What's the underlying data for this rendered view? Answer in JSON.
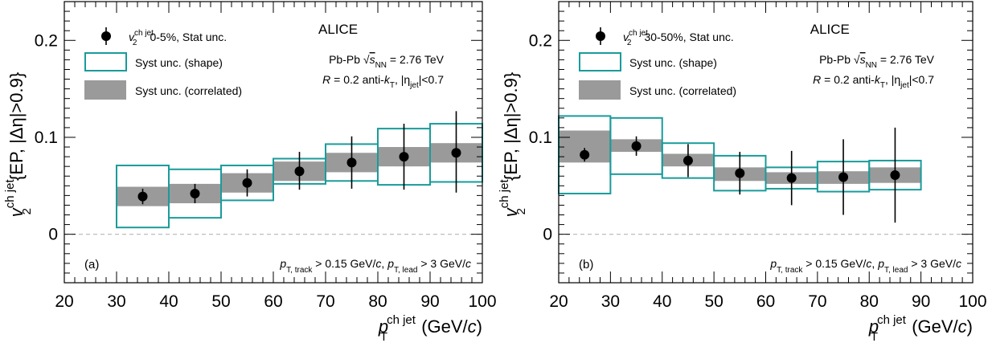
{
  "chart_data": [
    {
      "type": "scatter",
      "panel_label": "(a)",
      "experiment": "ALICE",
      "collision": "Pb-Pb",
      "energy": "= 2.76 TeV",
      "jet_def": "= 0.2 anti-",
      "eta_cut": "|<0.7",
      "kin_cut_track": "> 0.15 GeV/",
      "kin_cut_lead": "> 3 GeV/",
      "legend": {
        "stat": "0-5%, Stat unc.",
        "shape": "Syst unc. (shape)",
        "corr": "Syst unc. (correlated)"
      },
      "xlim": [
        20,
        100
      ],
      "ylim": [
        -0.05,
        0.24
      ],
      "xticks": [
        "20",
        "30",
        "40",
        "50",
        "60",
        "70",
        "80",
        "90",
        "100"
      ],
      "yticks": [
        "0",
        "0.1",
        "0.2"
      ],
      "xlabel": "(GeV/",
      "ylabel": "{EP, |Δη|>0.9}",
      "points": [
        {
          "x": 35,
          "y": 0.039,
          "stat": [
            0.031,
            0.047
          ],
          "shape": [
            0.007,
            0.071
          ],
          "corr": [
            0.029,
            0.049
          ]
        },
        {
          "x": 45,
          "y": 0.042,
          "stat": [
            0.032,
            0.052
          ],
          "shape": [
            0.017,
            0.067
          ],
          "corr": [
            0.032,
            0.052
          ]
        },
        {
          "x": 55,
          "y": 0.053,
          "stat": [
            0.039,
            0.067
          ],
          "shape": [
            0.035,
            0.071
          ],
          "corr": [
            0.043,
            0.063
          ]
        },
        {
          "x": 65,
          "y": 0.065,
          "stat": [
            0.046,
            0.085
          ],
          "shape": [
            0.052,
            0.078
          ],
          "corr": [
            0.055,
            0.075
          ]
        },
        {
          "x": 75,
          "y": 0.074,
          "stat": [
            0.047,
            0.101
          ],
          "shape": [
            0.055,
            0.093
          ],
          "corr": [
            0.064,
            0.084
          ]
        },
        {
          "x": 85,
          "y": 0.08,
          "stat": [
            0.046,
            0.114
          ],
          "shape": [
            0.051,
            0.109
          ],
          "corr": [
            0.07,
            0.09
          ]
        },
        {
          "x": 95,
          "y": 0.084,
          "stat": [
            0.043,
            0.127
          ],
          "shape": [
            0.054,
            0.114
          ],
          "corr": [
            0.074,
            0.094
          ]
        }
      ]
    },
    {
      "type": "scatter",
      "panel_label": "(b)",
      "experiment": "ALICE",
      "collision": "Pb-Pb",
      "energy": "= 2.76 TeV",
      "jet_def": "= 0.2 anti-",
      "eta_cut": "|<0.7",
      "kin_cut_track": "> 0.15 GeV/",
      "kin_cut_lead": "> 3 GeV/",
      "legend": {
        "stat": "30-50%, Stat unc.",
        "shape": "Syst unc. (shape)",
        "corr": "Syst unc. (correlated)"
      },
      "xlim": [
        20,
        100
      ],
      "ylim": [
        -0.05,
        0.24
      ],
      "xticks": [
        "20",
        "30",
        "40",
        "50",
        "60",
        "70",
        "80",
        "90",
        "100"
      ],
      "yticks": [
        "0",
        "0.1",
        "0.2"
      ],
      "xlabel": "(GeV/",
      "ylabel": "{EP, |Δη|>0.9}",
      "points": [
        {
          "x": 25,
          "y": 0.082,
          "stat": [
            0.075,
            0.089
          ],
          "shape": [
            0.042,
            0.122
          ],
          "corr": [
            0.074,
            0.107
          ]
        },
        {
          "x": 35,
          "y": 0.091,
          "stat": [
            0.081,
            0.101
          ],
          "shape": [
            0.062,
            0.12
          ],
          "corr": [
            0.085,
            0.098
          ]
        },
        {
          "x": 45,
          "y": 0.076,
          "stat": [
            0.059,
            0.093
          ],
          "shape": [
            0.058,
            0.094
          ],
          "corr": [
            0.07,
            0.083
          ]
        },
        {
          "x": 55,
          "y": 0.063,
          "stat": [
            0.041,
            0.085
          ],
          "shape": [
            0.045,
            0.081
          ],
          "corr": [
            0.055,
            0.069
          ]
        },
        {
          "x": 65,
          "y": 0.058,
          "stat": [
            0.03,
            0.086
          ],
          "shape": [
            0.047,
            0.069
          ],
          "corr": [
            0.052,
            0.064
          ]
        },
        {
          "x": 75,
          "y": 0.059,
          "stat": [
            0.02,
            0.098
          ],
          "shape": [
            0.044,
            0.075
          ],
          "corr": [
            0.052,
            0.065
          ]
        },
        {
          "x": 85,
          "y": 0.061,
          "stat": [
            0.012,
            0.11
          ],
          "shape": [
            0.046,
            0.076
          ],
          "corr": [
            0.053,
            0.069
          ]
        }
      ]
    }
  ],
  "colors": {
    "shape_outline": "#1a9b9b",
    "correlated_fill": "#9a9a9a",
    "marker": "#000000",
    "zero_line": "#bdbdbd"
  }
}
